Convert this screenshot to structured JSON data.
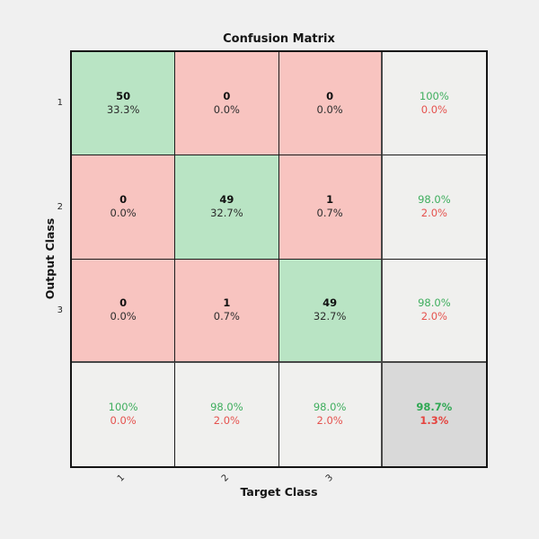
{
  "title": "Confusion Matrix",
  "axes": {
    "x_label": "Target Class",
    "y_label": "Output Class",
    "x_ticks": [
      "1",
      "2",
      "3"
    ],
    "y_ticks": [
      "1",
      "2",
      "3"
    ]
  },
  "cells": [
    {
      "line1": "50",
      "line2": "33.3%"
    },
    {
      "line1": "0",
      "line2": "0.0%"
    },
    {
      "line1": "0",
      "line2": "0.0%"
    },
    {
      "line1": "100%",
      "line2": "0.0%"
    },
    {
      "line1": "0",
      "line2": "0.0%"
    },
    {
      "line1": "49",
      "line2": "32.7%"
    },
    {
      "line1": "1",
      "line2": "0.7%"
    },
    {
      "line1": "98.0%",
      "line2": "2.0%"
    },
    {
      "line1": "0",
      "line2": "0.0%"
    },
    {
      "line1": "1",
      "line2": "0.7%"
    },
    {
      "line1": "49",
      "line2": "32.7%"
    },
    {
      "line1": "98.0%",
      "line2": "2.0%"
    },
    {
      "line1": "100%",
      "line2": "0.0%"
    },
    {
      "line1": "98.0%",
      "line2": "2.0%"
    },
    {
      "line1": "98.0%",
      "line2": "2.0%"
    },
    {
      "line1": "98.7%",
      "line2": "1.3%"
    }
  ],
  "colors": {
    "correct_cell": "#b9e4c4",
    "incorrect_cell": "#f8c4c0",
    "summary_cell": "#f0f0ee",
    "overall_cell": "#d9d9d9",
    "positive_text": "#3fae5e",
    "negative_text": "#e5524e",
    "grid_line": "#1c1c1c",
    "background": "#f0f0f0"
  },
  "chart_data": {
    "type": "heatmap",
    "title": "Confusion Matrix",
    "xlabel": "Target Class",
    "ylabel": "Output Class",
    "classes": [
      "1",
      "2",
      "3"
    ],
    "counts": [
      [
        50,
        0,
        0
      ],
      [
        0,
        49,
        1
      ],
      [
        0,
        1,
        49
      ]
    ],
    "count_percents": [
      [
        "33.3%",
        "0.0%",
        "0.0%"
      ],
      [
        "0.0%",
        "32.7%",
        "0.7%"
      ],
      [
        "0.0%",
        "0.7%",
        "32.7%"
      ]
    ],
    "row_summary": [
      {
        "green": "100%",
        "red": "0.0%"
      },
      {
        "green": "98.0%",
        "red": "2.0%"
      },
      {
        "green": "98.0%",
        "red": "2.0%"
      }
    ],
    "column_summary": [
      {
        "green": "100%",
        "red": "0.0%"
      },
      {
        "green": "98.0%",
        "red": "2.0%"
      },
      {
        "green": "98.0%",
        "red": "2.0%"
      }
    ],
    "overall_accuracy": "98.7%",
    "overall_error": "1.3%",
    "legend_position": "none",
    "grid": true
  }
}
